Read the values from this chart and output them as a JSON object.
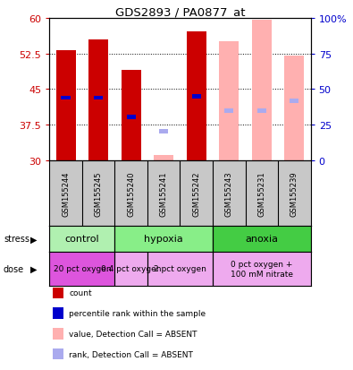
{
  "title": "GDS2893 / PA0877_at",
  "samples": [
    "GSM155244",
    "GSM155245",
    "GSM155240",
    "GSM155241",
    "GSM155242",
    "GSM155243",
    "GSM155231",
    "GSM155239"
  ],
  "bar_values": [
    53.2,
    55.5,
    49.0,
    31.2,
    57.2,
    55.0,
    59.5,
    52.0
  ],
  "bar_present": [
    true,
    true,
    true,
    false,
    true,
    false,
    false,
    false
  ],
  "rank_values": [
    43.2,
    43.2,
    39.2,
    36.2,
    43.5,
    40.5,
    40.5,
    42.5
  ],
  "ylim_left": [
    30,
    60
  ],
  "ylim_right": [
    0,
    100
  ],
  "yticks_left": [
    30,
    37.5,
    45,
    52.5,
    60
  ],
  "yticks_right": [
    0,
    25,
    50,
    75,
    100
  ],
  "color_present_bar": "#cc0000",
  "color_absent_bar": "#ffb0b0",
  "color_present_rank": "#0000cc",
  "color_absent_rank": "#aaaaee",
  "background_color": "#ffffff",
  "plot_bg_color": "#ffffff",
  "axis_label_color_left": "#cc0000",
  "axis_label_color_right": "#0000cc",
  "stress_groups": [
    {
      "label": "control",
      "s": 0,
      "e": 2,
      "color": "#b0f0b0"
    },
    {
      "label": "hypoxia",
      "s": 2,
      "e": 5,
      "color": "#88ee88"
    },
    {
      "label": "anoxia",
      "s": 5,
      "e": 8,
      "color": "#44cc44"
    }
  ],
  "dose_groups": [
    {
      "label": "20 pct oxygen",
      "s": 0,
      "e": 2,
      "color": "#dd55dd"
    },
    {
      "label": "0.4 pct oxygen",
      "s": 2,
      "e": 3,
      "color": "#eeaaee"
    },
    {
      "label": "2 pct oxygen",
      "s": 3,
      "e": 5,
      "color": "#eeaaee"
    },
    {
      "label": "0 pct oxygen +\n100 mM nitrate",
      "s": 5,
      "e": 8,
      "color": "#eeaaee"
    }
  ],
  "legend": [
    {
      "color": "#cc0000",
      "label": "count"
    },
    {
      "color": "#0000cc",
      "label": "percentile rank within the sample"
    },
    {
      "color": "#ffb0b0",
      "label": "value, Detection Call = ABSENT"
    },
    {
      "color": "#aaaaee",
      "label": "rank, Detection Call = ABSENT"
    }
  ]
}
